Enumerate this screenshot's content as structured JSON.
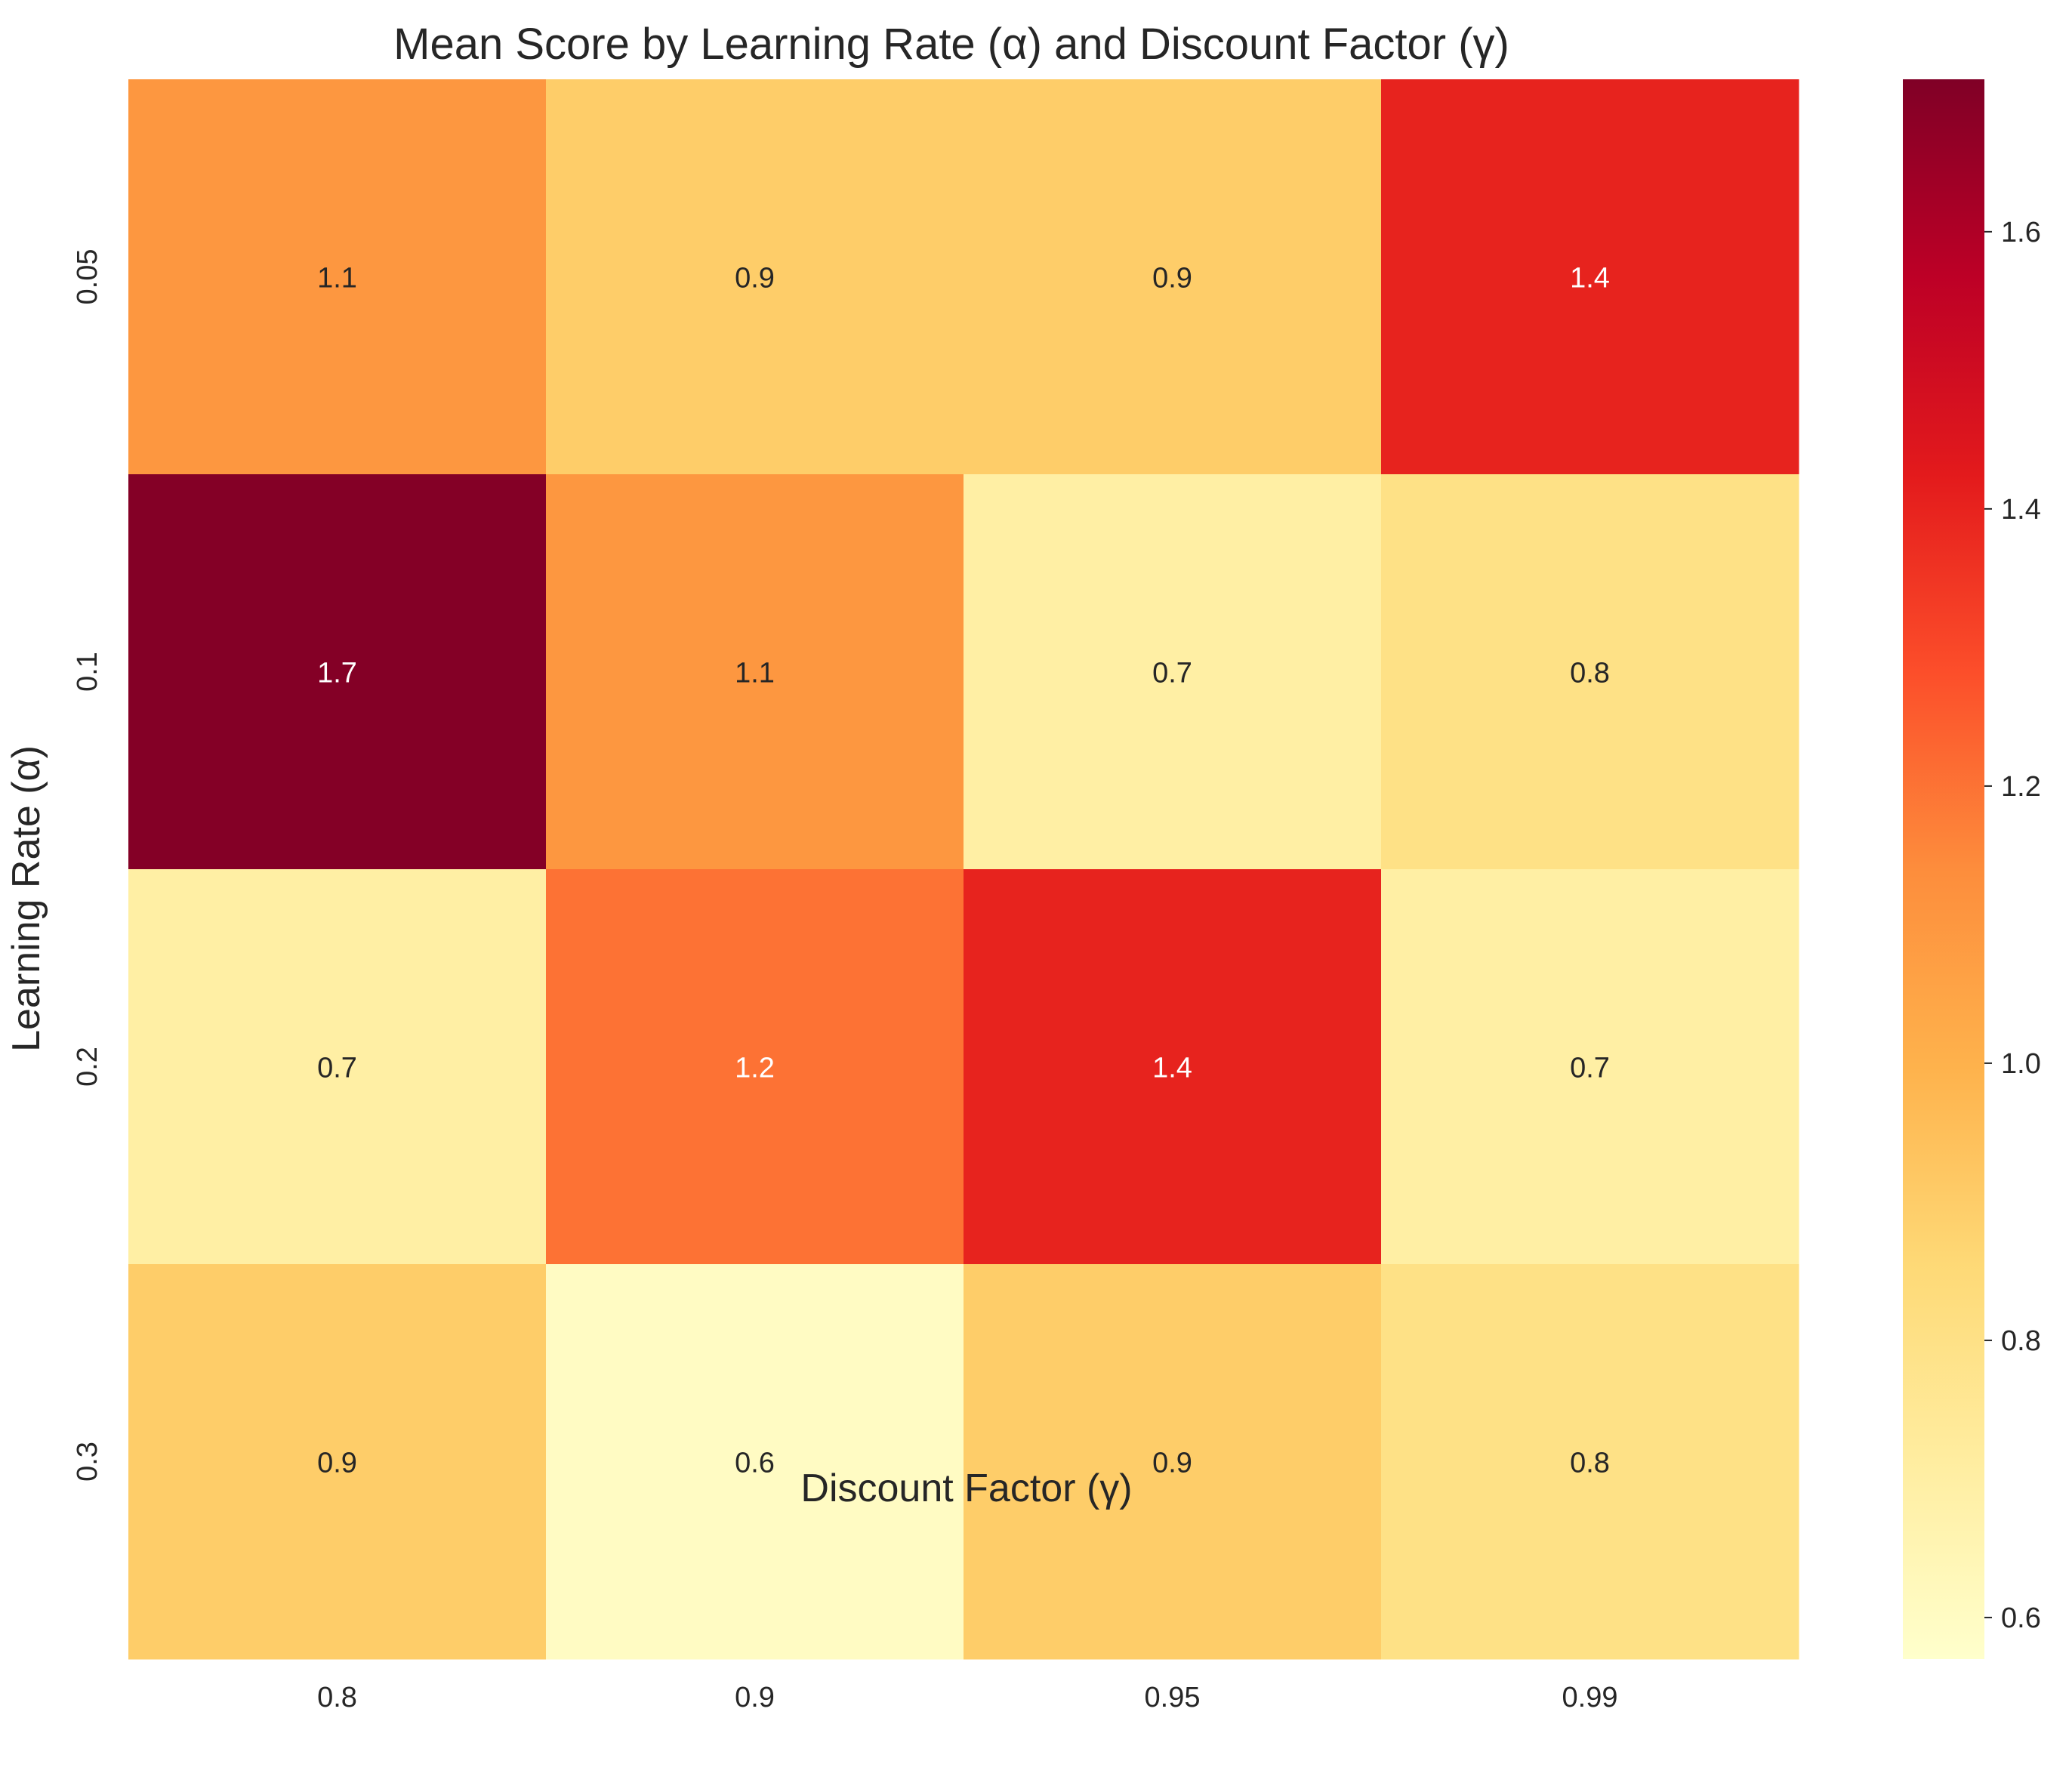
{
  "chart_data": {
    "type": "heatmap",
    "title": "Mean Score by Learning Rate (α) and Discount Factor (γ)",
    "xlabel": "Discount Factor (γ)",
    "ylabel": "Learning Rate (α)",
    "x_categories": [
      "0.8",
      "0.9",
      "0.95",
      "0.99"
    ],
    "y_categories": [
      "0.05",
      "0.1",
      "0.2",
      "0.3"
    ],
    "values": [
      [
        1.1,
        0.9,
        0.9,
        1.4
      ],
      [
        1.7,
        1.1,
        0.7,
        0.8
      ],
      [
        0.7,
        1.2,
        1.4,
        0.7
      ],
      [
        0.9,
        0.6,
        0.9,
        0.8
      ]
    ],
    "colorbar": {
      "range": [
        0.57,
        1.71
      ],
      "ticks": [
        "0.6",
        "0.8",
        "1.0",
        "1.2",
        "1.4",
        "1.6"
      ],
      "colormap": [
        "#ffffcc",
        "#ffeda0",
        "#fed976",
        "#feb24c",
        "#fd8d3c",
        "#fc4e2a",
        "#e31a1c",
        "#bd0026",
        "#800026"
      ]
    },
    "annotation_colors": {
      "dark": "#262626",
      "light": "#ffffff"
    },
    "grid": false,
    "legend": "colorbar-right"
  }
}
